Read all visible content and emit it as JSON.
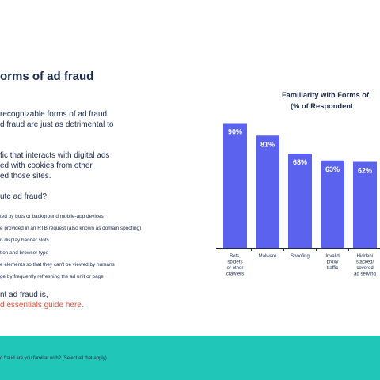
{
  "left": {
    "title": "orms of ad fraud",
    "para1": [
      "recognizable forms of ad fraud",
      "d fraud are just as detrimental to"
    ],
    "para2": [
      "fic that interacts with digital ads",
      "ed with cookies from other",
      "ed those sites."
    ],
    "question": "ute ad fraud?",
    "bullets": [
      "ted by bots or background mobile-app devices",
      "e provided in an RTB request (also known as domain spoofing)",
      "n display banner slots",
      "tion and browser type",
      "e elements so that they can't be viewed by humans",
      "ge by frequently refreshing the ad unit or page"
    ],
    "closing_line": "nt ad fraud is,",
    "closing_link": "d essentials guide here."
  },
  "chart_data": {
    "type": "bar",
    "title_lines": [
      "Familiarity with Forms of",
      "(% of Respondent"
    ],
    "categories": [
      [
        "Bots,",
        "spiders",
        "or other",
        "crawlers"
      ],
      [
        "Malware"
      ],
      [
        "Spoofing"
      ],
      [
        "Invalid",
        "proxy",
        "traffic"
      ],
      [
        "Hidden/",
        "stacked/",
        "covered",
        "ad serving"
      ]
    ],
    "values": [
      90,
      81,
      68,
      63,
      62
    ],
    "value_labels": [
      "90%",
      "81%",
      "68%",
      "63%",
      "62%"
    ],
    "bar_color": "#5b62ee",
    "axis_color": "#1b2a4a"
  },
  "footer": {
    "text": "d fraud are you familiar with? (Select all that apply)",
    "color": "#20c7b8"
  }
}
